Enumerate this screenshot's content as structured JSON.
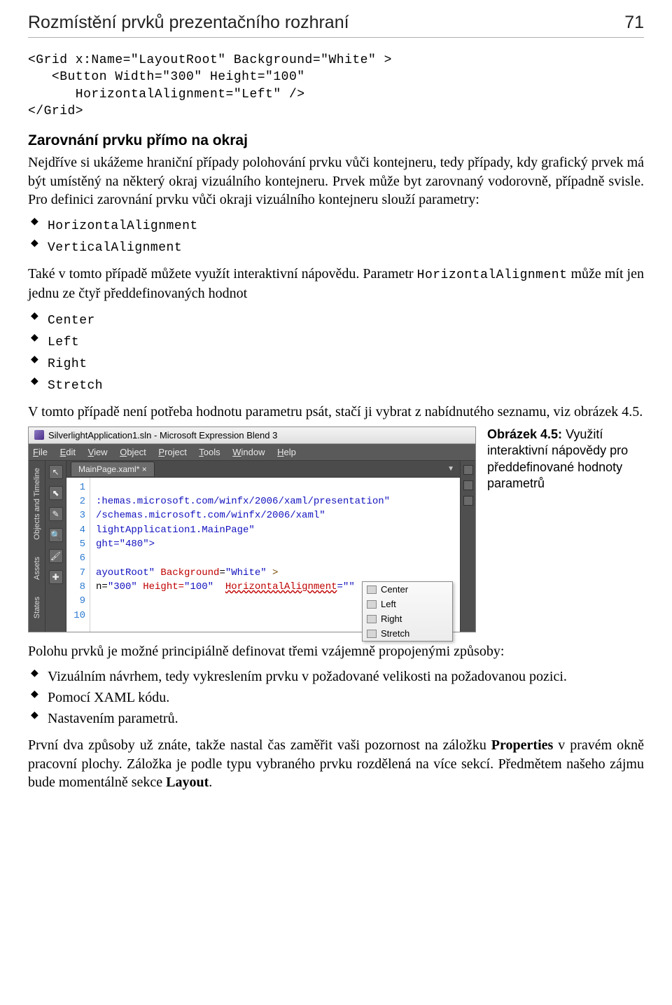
{
  "header": {
    "title": "Rozmístění prvků prezentačního rozhraní",
    "page_number": "71"
  },
  "code1": {
    "l1": "<Grid x:Name=\"LayoutRoot\" Background=\"White\" >",
    "l2": "   <Button Width=\"300\" Height=\"100\"",
    "l3": "      HorizontalAlignment=\"Left\" />",
    "l4": "</Grid>"
  },
  "sect1": {
    "heading": "Zarovnání prvku přímo na okraj"
  },
  "para1": "Nejdříve si ukážeme hraniční případy polohování prvku vůči kontejneru, tedy případy, kdy grafický prvek má být umístěný na některý okraj vizuálního kontejneru. Prvek může byt zarovnaný vodorovně, případně svisle. Pro definici zarovnání prvku vůči okraji vizuálního kontejneru slouží parametry:",
  "list1": {
    "i1": "HorizontalAlignment",
    "i2": "VerticalAlignment"
  },
  "para2a": "Také v tomto případě můžete využít interaktivní nápovědu. Parametr ",
  "para2b": "HorizontalAlignment",
  "para2c": " může mít jen jednu ze čtyř předdefinovaných hodnot",
  "list2": {
    "i1": "Center",
    "i2": "Left",
    "i3": "Right",
    "i4": "Stretch"
  },
  "para3": "V tomto případě není potřeba hodnotu parametru psát, stačí ji vybrat z nabídnutého seznamu, viz obrázek 4.5.",
  "fig": {
    "caption_bold": "Obrázek 4.5:",
    "caption_rest": " Využití interaktivní nápovědy pro předdefinované hodnoty parametrů"
  },
  "shot": {
    "title": "SilverlightApplication1.sln - Microsoft Expression Blend 3",
    "menu": {
      "file": "File",
      "edit": "Edit",
      "view": "View",
      "object": "Object",
      "project": "Project",
      "tools": "Tools",
      "window": "Window",
      "help": "Help"
    },
    "left_tabs": {
      "t1": "Objects and Timeline",
      "t2": "Assets",
      "t3": "States"
    },
    "doc_tab": "MainPage.xaml* ×",
    "gutter": [
      "1",
      "2",
      "3",
      "4",
      "5",
      "6",
      "7",
      "8",
      "9",
      "10"
    ],
    "code": {
      "l1": "",
      "l2": ":hemas.microsoft.com/winfx/2006/xaml/presentation\"",
      "l3": "/schemas.microsoft.com/winfx/2006/xaml\"",
      "l4": "lightApplication1.MainPage\"",
      "l5": "ght=\"480\">",
      "l6": "",
      "l7a": "ayoutRoot\" ",
      "l7b": "Background",
      "l7c": "=",
      "l7d": "\"White\"",
      "l7e": " >",
      "l8a": "n=",
      "l8b": "\"300\"",
      "l8c": " Height=",
      "l8d": "\"100\"",
      "l8e": "  ",
      "l8f": "HorizontalAlignment",
      "l8g": "=\"\"",
      "l8h": "   />",
      "l9": "",
      "l10": ""
    },
    "intellisense": {
      "o1": "Center",
      "o2": "Left",
      "o3": "Right",
      "o4": "Stretch"
    }
  },
  "para4": "Polohu prvků je možné principiálně definovat třemi vzájemně propojenými způsoby:",
  "list3": {
    "i1": "Vizuálním návrhem, tedy vykreslením prvku v požadované velikosti na požadovanou pozici.",
    "i2": "Pomocí XAML kódu.",
    "i3": "Nastavením parametrů."
  },
  "para5a": "První dva způsoby už znáte, takže nastal čas zaměřit vaši pozornost na záložku ",
  "para5b": "Properties",
  "para5c": " v pravém okně pracovní plochy. Záložka je podle typu vybraného prvku rozdělená na více sekcí. Předmětem našeho zájmu bude momentálně sekce ",
  "para5d": "Layout",
  "para5e": "."
}
